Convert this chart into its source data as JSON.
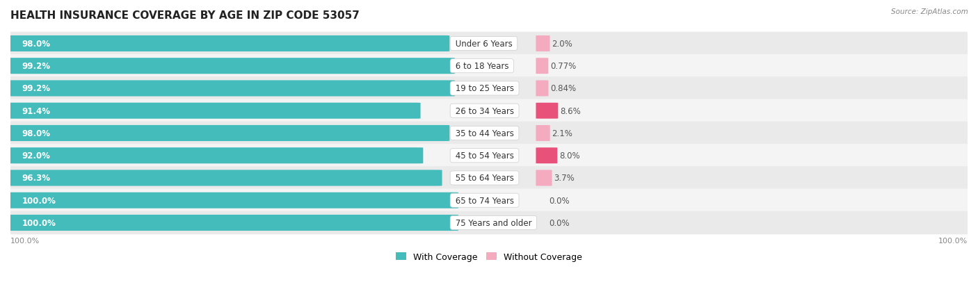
{
  "title": "HEALTH INSURANCE COVERAGE BY AGE IN ZIP CODE 53057",
  "source": "Source: ZipAtlas.com",
  "categories": [
    "Under 6 Years",
    "6 to 18 Years",
    "19 to 25 Years",
    "26 to 34 Years",
    "35 to 44 Years",
    "45 to 54 Years",
    "55 to 64 Years",
    "65 to 74 Years",
    "75 Years and older"
  ],
  "with_coverage": [
    98.0,
    99.2,
    99.2,
    91.4,
    98.0,
    92.0,
    96.3,
    100.0,
    100.0
  ],
  "without_coverage": [
    2.0,
    0.77,
    0.84,
    8.6,
    2.1,
    8.0,
    3.7,
    0.0,
    0.0
  ],
  "with_coverage_labels": [
    "98.0%",
    "99.2%",
    "99.2%",
    "91.4%",
    "98.0%",
    "92.0%",
    "96.3%",
    "100.0%",
    "100.0%"
  ],
  "without_coverage_labels": [
    "2.0%",
    "0.77%",
    "0.84%",
    "8.6%",
    "2.1%",
    "8.0%",
    "3.7%",
    "0.0%",
    "0.0%"
  ],
  "color_with": "#45BCBC",
  "color_without_light": "#F4AABF",
  "color_without_dark": "#E8527A",
  "title_fontsize": 11,
  "label_fontsize": 8.5,
  "legend_fontsize": 9,
  "axis_label_fontsize": 8,
  "bar_scale": 0.46,
  "without_scale": 0.13,
  "bar_height": 0.7,
  "dark_threshold": 5.0,
  "row_colors": [
    "#EAEAEA",
    "#F4F4F4"
  ]
}
